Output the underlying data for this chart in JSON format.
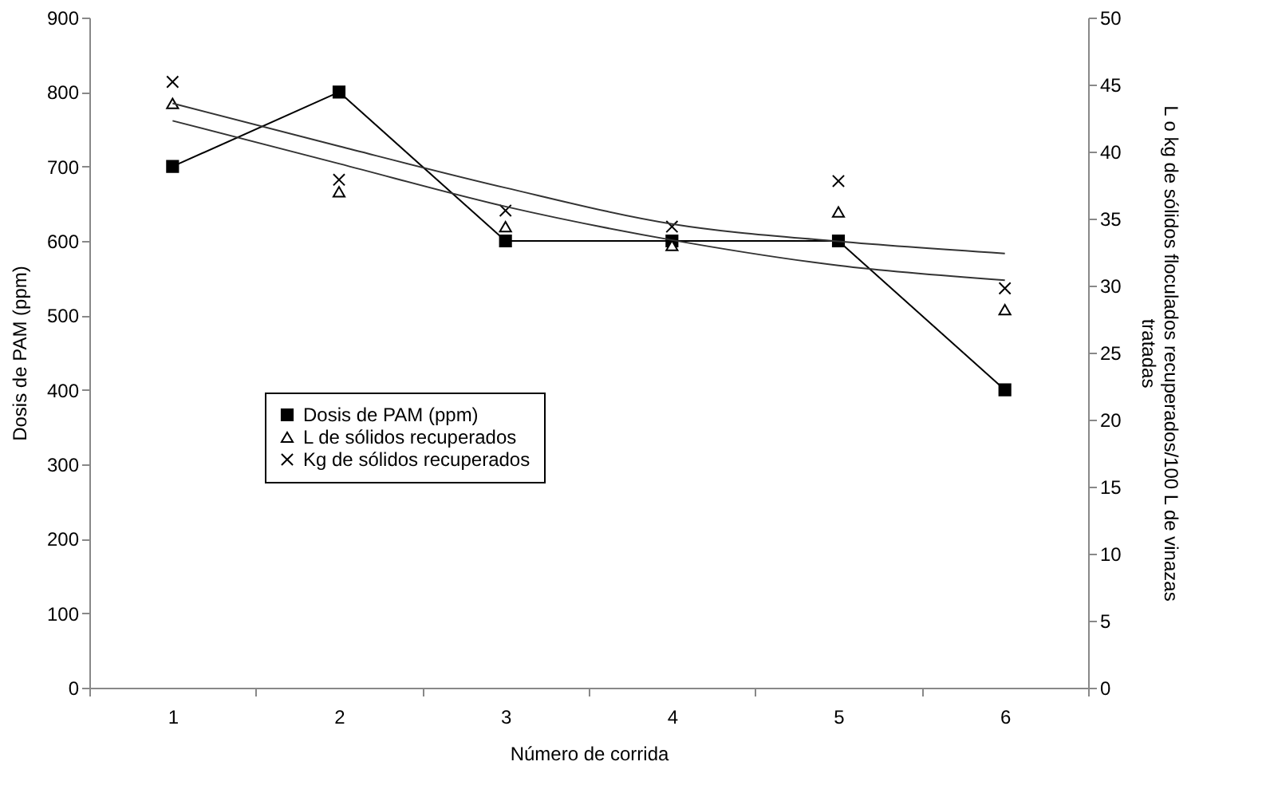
{
  "chart_data": {
    "type": "line",
    "xlabel": "Número de corrida",
    "ylabel": "Dosis de PAM (ppm)",
    "y2label": "L o kg de sólidos floculados recuperados/100 L de vinazas tratadas",
    "categories": [
      "1",
      "2",
      "3",
      "4",
      "5",
      "6"
    ],
    "ylim": [
      0,
      900
    ],
    "yticks": [
      0,
      100,
      200,
      300,
      400,
      500,
      600,
      700,
      800,
      900
    ],
    "y2lim": [
      0,
      50
    ],
    "y2ticks": [
      0,
      5,
      10,
      15,
      20,
      25,
      30,
      35,
      40,
      45,
      50
    ],
    "grid": false,
    "legend": "left",
    "line_style": "solid",
    "series": [
      {
        "name": "Dosis de PAM (ppm)",
        "color": "#000000",
        "marker": "square",
        "values": [
          700,
          800,
          600,
          600,
          600,
          400
        ]
      },
      {
        "name": "L de sólidos recuperados",
        "color": "#000000",
        "type": "scatter",
        "marker": "triangle",
        "axis": "y2",
        "values": [
          43.6,
          37.0,
          34.4,
          33.0,
          35.5,
          28.2
        ]
      },
      {
        "name": "Kg de sólidos recuperados",
        "color": "#000000",
        "type": "scatter",
        "marker": "cross",
        "axis": "y2",
        "values": [
          45.2,
          37.9,
          35.6,
          34.4,
          37.8,
          29.8
        ]
      },
      {
        "color": "#333333",
        "marker": "none",
        "axis": "y2",
        "x": [
          "1",
          "2",
          "3",
          "4",
          "5",
          "6"
        ],
        "values": [
          43.6,
          40.4,
          37.3,
          34.6,
          33.3,
          32.4
        ]
      },
      {
        "color": "#333333",
        "marker": "none",
        "axis": "y2",
        "x": [
          "1",
          "2",
          "3",
          "4",
          "5",
          "6"
        ],
        "values": [
          42.3,
          39.1,
          35.9,
          33.4,
          31.5,
          30.4
        ]
      }
    ]
  }
}
